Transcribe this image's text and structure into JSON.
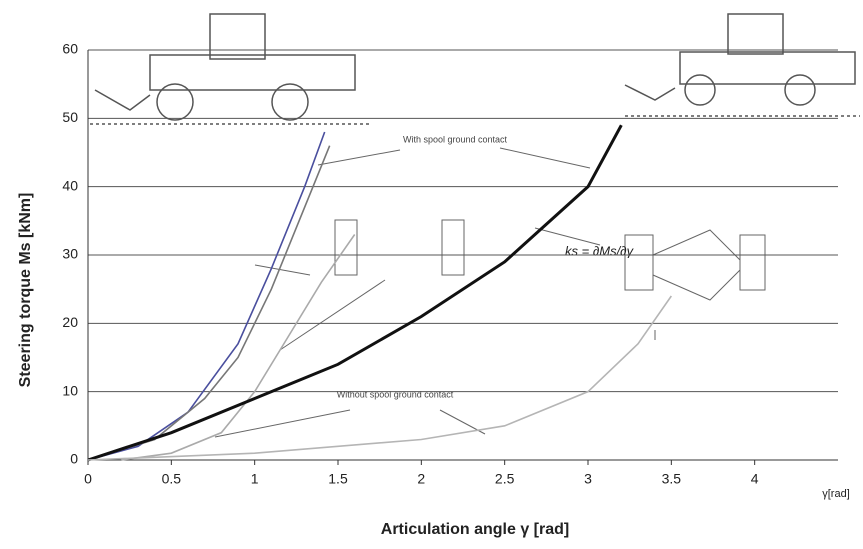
{
  "chart_data": {
    "type": "line",
    "y_label": "Steering torque Ms [kNm]",
    "x_label": "Articulation angle γ [rad]",
    "x_unit_label": "γ[rad]",
    "annotations": [
      "With spool ground contact",
      "Without spool ground contact",
      "ks = ∂Ms/∂γ"
    ],
    "xlim": [
      0,
      4.5
    ],
    "xticks": [
      0,
      0.5,
      1,
      1.5,
      2,
      2.5,
      3,
      3.5,
      4
    ],
    "ylim": [
      0,
      60
    ],
    "yticks": [
      0,
      10,
      20,
      30,
      40,
      50,
      60
    ],
    "grid": true,
    "series": [
      {
        "color": "#4a4f9e",
        "x": [
          0,
          0.3,
          0.6,
          0.9,
          1.1,
          1.3,
          1.42
        ],
        "values": [
          0,
          2,
          7,
          17,
          28,
          40,
          48
        ]
      },
      {
        "color": "#777777",
        "x": [
          0,
          0.4,
          0.7,
          0.9,
          1.1,
          1.3,
          1.45
        ],
        "values": [
          0,
          3,
          9,
          15,
          25,
          37,
          46
        ]
      },
      {
        "color": "#aaaaaa",
        "x": [
          0.2,
          0.5,
          0.8,
          1.0,
          1.2,
          1.4,
          1.6
        ],
        "values": [
          0,
          1,
          4,
          10,
          18,
          26,
          33
        ]
      },
      {
        "color": "#111111",
        "x": [
          0,
          0.5,
          1,
          1.5,
          2,
          2.5,
          3,
          3.2
        ],
        "values": [
          0,
          4,
          9,
          14,
          21,
          29,
          40,
          49
        ]
      },
      {
        "color": "#b5b5b5",
        "x": [
          0,
          1,
          2,
          2.5,
          3,
          3.3,
          3.5
        ],
        "values": [
          0,
          1,
          3,
          5,
          10,
          17,
          24
        ]
      }
    ]
  }
}
